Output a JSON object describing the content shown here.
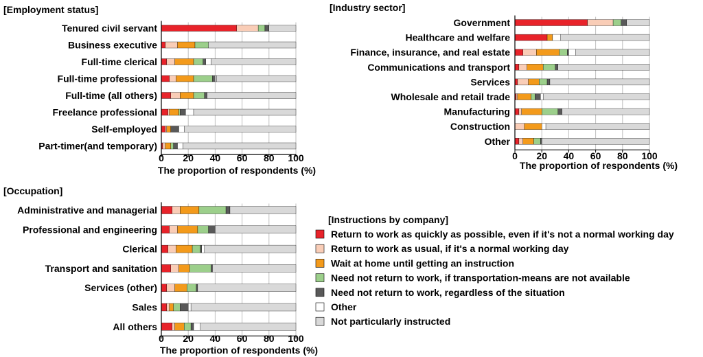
{
  "chart_data": [
    {
      "type": "bar",
      "stacked": true,
      "orientation": "horizontal",
      "title": "[Employment status]",
      "xlabel": "The proportion of respondents (%)",
      "xlim": [
        0,
        100
      ],
      "xticks": [
        "0",
        "20",
        "40",
        "60",
        "80",
        "100"
      ],
      "categories": [
        "Tenured civil servant",
        "Business executive",
        "Full-time clerical",
        "Full-time professional",
        "Full-time (all others)",
        "Freelance professional",
        "Self-employed",
        "Part-timer(and temporary)"
      ],
      "series": [
        {
          "name": "Return to work as quickly as possible, even if it's not a normal working day",
          "values": [
            56,
            3,
            4,
            6,
            7,
            5,
            3,
            1
          ]
        },
        {
          "name": "Return to work as usual, if it's a normal working day",
          "values": [
            16,
            9,
            6,
            5,
            7,
            1,
            1,
            2
          ]
        },
        {
          "name": "Wait at home until getting an instruction",
          "values": [
            0,
            13,
            14,
            13,
            10,
            7,
            3,
            4
          ]
        },
        {
          "name": "Need not return to work, if transportation-means are not available",
          "values": [
            5,
            10,
            7,
            14,
            8,
            1,
            0,
            2
          ]
        },
        {
          "name": "Need not return to work, regardless of the situation",
          "values": [
            3,
            0,
            2,
            2,
            2,
            4,
            6,
            3
          ]
        },
        {
          "name": "Other",
          "values": [
            0,
            0,
            4,
            1,
            0,
            6,
            4,
            4
          ]
        },
        {
          "name": "Not particularly instructed",
          "values": [
            20,
            65,
            63,
            59,
            66,
            76,
            83,
            84
          ]
        }
      ]
    },
    {
      "type": "bar",
      "stacked": true,
      "orientation": "horizontal",
      "title": "[Industry sector]",
      "xlabel": "The proportion of respondents (%)",
      "xlim": [
        0,
        100
      ],
      "xticks": [
        "0",
        "20",
        "40",
        "60",
        "80",
        "100"
      ],
      "categories": [
        "Government",
        "Healthcare and welfare",
        "Finance, insurance, and real estate",
        "Communications and transport",
        "Services",
        "Wholesale and retail trade",
        "Manufacturing",
        "Construction",
        "Other"
      ],
      "series": [
        {
          "name": "Return to work as quickly as possible, even if it's not a normal working day",
          "values": [
            54,
            24,
            6,
            3,
            2,
            1,
            3,
            0,
            3
          ]
        },
        {
          "name": "Return to work as usual, if it's a normal working day",
          "values": [
            19,
            0,
            10,
            6,
            8,
            1,
            2,
            7,
            3
          ]
        },
        {
          "name": "Wait at home until getting an instruction",
          "values": [
            0,
            4,
            17,
            12,
            8,
            10,
            15,
            13,
            8
          ]
        },
        {
          "name": "Need not return to work, if transportation-means are not available",
          "values": [
            6,
            0,
            6,
            9,
            6,
            3,
            12,
            0,
            5
          ]
        },
        {
          "name": "Need not return to work, regardless of the situation",
          "values": [
            4,
            0,
            1,
            2,
            2,
            4,
            3,
            0,
            1
          ]
        },
        {
          "name": "Other",
          "values": [
            0,
            6,
            5,
            0,
            0,
            2,
            0,
            3,
            0
          ]
        },
        {
          "name": "Not particularly instructed",
          "values": [
            17,
            66,
            55,
            68,
            74,
            79,
            65,
            77,
            80
          ]
        }
      ]
    },
    {
      "type": "bar",
      "stacked": true,
      "orientation": "horizontal",
      "title": "[Occupation]",
      "xlabel": "The proportion of respondents (%)",
      "xlim": [
        0,
        100
      ],
      "xticks": [
        "0",
        "20",
        "40",
        "60",
        "80",
        "100"
      ],
      "categories": [
        "Administrative and managerial",
        "Professional and engineering",
        "Clerical",
        "Transport and sanitation",
        "Services (other)",
        "Sales",
        "All others"
      ],
      "series": [
        {
          "name": "Return to work as quickly as possible, even if it's not a normal working day",
          "values": [
            8,
            6,
            5,
            7,
            4,
            4,
            8
          ]
        },
        {
          "name": "Return to work as usual, if it's a normal working day",
          "values": [
            6,
            6,
            6,
            6,
            6,
            2,
            2
          ]
        },
        {
          "name": "Wait at home until getting an instruction",
          "values": [
            14,
            15,
            12,
            8,
            9,
            3,
            7
          ]
        },
        {
          "name": "Need not return to work, if transportation-means are not available",
          "values": [
            20,
            8,
            6,
            16,
            7,
            5,
            5
          ]
        },
        {
          "name": "Need not return to work, regardless of the situation",
          "values": [
            3,
            5,
            1,
            1,
            1,
            6,
            2
          ]
        },
        {
          "name": "Other",
          "values": [
            0,
            0,
            2,
            0,
            0,
            2,
            5
          ]
        },
        {
          "name": "Not particularly instructed",
          "values": [
            49,
            60,
            68,
            62,
            73,
            78,
            71
          ]
        }
      ]
    }
  ],
  "legend": {
    "title": "[Instructions by company]",
    "items": [
      {
        "label": "Return to work as quickly as possible, even if it's not a normal working day",
        "color": "#e8232a"
      },
      {
        "label": "Return to work as usual, if it's a normal working day",
        "color": "#f9cdb7"
      },
      {
        "label": "Wait at home until getting an instruction",
        "color": "#f39a1b"
      },
      {
        "label": "Need not return to work, if transportation-means are not available",
        "color": "#9ccf8b"
      },
      {
        "label": "Need not return to work, regardless of the situation",
        "color": "#595959"
      },
      {
        "label": "Other",
        "color": "#ffffff"
      },
      {
        "label": "Not particularly instructed",
        "color": "#d9d9d9"
      }
    ]
  }
}
